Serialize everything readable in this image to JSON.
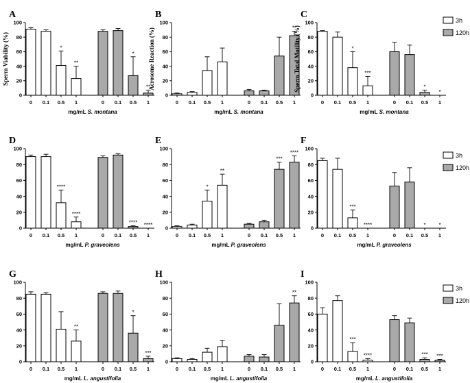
{
  "legend": {
    "items": [
      {
        "label": "3h",
        "color": "#ffffff"
      },
      {
        "label": "120h",
        "color": "#a9a9a9"
      }
    ]
  },
  "chart_data": [
    {
      "panel": "A",
      "type": "bar",
      "ylabel": "Sperm Viability (%)",
      "ylim": [
        0,
        100
      ],
      "yticks": [
        0,
        20,
        40,
        60,
        80,
        100
      ],
      "x_prefix": "mg/mL",
      "x_species": "S. montana",
      "categories": [
        "0",
        "0.1",
        "0.5",
        "1"
      ],
      "series": [
        {
          "name": "3h",
          "values": [
            91,
            88,
            41,
            23
          ],
          "errors": [
            2,
            2,
            20,
            17
          ],
          "sig": [
            "",
            "",
            "*",
            "**"
          ]
        },
        {
          "name": "120h",
          "values": [
            88,
            89,
            27,
            3
          ],
          "errors": [
            2,
            3,
            26,
            4
          ],
          "sig": [
            "",
            "",
            "*",
            "**"
          ]
        }
      ]
    },
    {
      "panel": "D",
      "type": "bar",
      "ylabel": "",
      "ylim": [
        0,
        100
      ],
      "yticks": [
        0,
        20,
        40,
        60,
        80,
        100
      ],
      "x_prefix": "mg/mL",
      "x_species": "P. graveolens",
      "categories": [
        "0",
        "0.1",
        "0.5",
        "1"
      ],
      "series": [
        {
          "name": "3h",
          "values": [
            90,
            90,
            32,
            8
          ],
          "errors": [
            2,
            3,
            16,
            6
          ],
          "sig": [
            "",
            "",
            "****",
            "****"
          ]
        },
        {
          "name": "120h",
          "values": [
            89,
            92,
            2,
            0
          ],
          "errors": [
            2,
            2,
            1,
            0
          ],
          "sig": [
            "",
            "",
            "****",
            "****"
          ]
        }
      ]
    },
    {
      "panel": "G",
      "type": "bar",
      "ylabel": "",
      "ylim": [
        0,
        100
      ],
      "yticks": [
        0,
        20,
        40,
        60,
        80,
        100
      ],
      "x_prefix": "mg/mL",
      "x_species": "L. angustifolia",
      "categories": [
        "0",
        "0.1",
        "0.5",
        "1"
      ],
      "series": [
        {
          "name": "3h",
          "values": [
            85,
            85,
            41,
            26
          ],
          "errors": [
            3,
            2,
            22,
            14
          ],
          "sig": [
            "",
            "",
            "",
            "**"
          ]
        },
        {
          "name": "120h",
          "values": [
            86,
            86,
            36,
            4
          ],
          "errors": [
            2,
            3,
            22,
            3
          ],
          "sig": [
            "",
            "",
            "*",
            "***"
          ]
        }
      ]
    },
    {
      "panel": "B",
      "type": "bar",
      "ylabel": "Acrosome Reaction (%)",
      "ylim": [
        0,
        100
      ],
      "yticks": [
        0,
        20,
        40,
        60,
        80,
        100
      ],
      "x_prefix": "mg/mL",
      "x_species": "S. montana",
      "categories": [
        "0",
        "0.1",
        "0.5",
        "1"
      ],
      "series": [
        {
          "name": "3h",
          "values": [
            2,
            4,
            34,
            46
          ],
          "errors": [
            1,
            1,
            19,
            19
          ],
          "sig": [
            "",
            "",
            "",
            ""
          ]
        },
        {
          "name": "120h",
          "values": [
            6,
            6,
            54,
            82
          ],
          "errors": [
            2,
            1,
            26,
            6
          ],
          "sig": [
            "",
            "",
            "",
            "**"
          ]
        }
      ]
    },
    {
      "panel": "E",
      "type": "bar",
      "ylabel": "",
      "ylim": [
        0,
        100
      ],
      "yticks": [
        0,
        20,
        40,
        60,
        80,
        100
      ],
      "x_prefix": "mg/mL",
      "x_species": "P. graveolens",
      "categories": [
        "0",
        "0.1",
        "0.5",
        "1"
      ],
      "series": [
        {
          "name": "3h",
          "values": [
            2,
            4,
            34,
            54
          ],
          "errors": [
            1,
            1,
            14,
            14
          ],
          "sig": [
            "",
            "",
            "*",
            "**"
          ]
        },
        {
          "name": "120h",
          "values": [
            5,
            8,
            74,
            83
          ],
          "errors": [
            1,
            2,
            9,
            8
          ],
          "sig": [
            "",
            "",
            "***",
            "****"
          ]
        }
      ]
    },
    {
      "panel": "H",
      "type": "bar",
      "ylabel": "",
      "ylim": [
        0,
        100
      ],
      "yticks": [
        0,
        20,
        40,
        60,
        80,
        100
      ],
      "x_prefix": "mg/mL",
      "x_species": "L. angustifolia",
      "categories": [
        "0",
        "0.1",
        "0.5",
        "1"
      ],
      "series": [
        {
          "name": "3h",
          "values": [
            4,
            3,
            12,
            19
          ],
          "errors": [
            1,
            1,
            5,
            8
          ],
          "sig": [
            "",
            "",
            "",
            ""
          ]
        },
        {
          "name": "120h",
          "values": [
            7,
            6,
            46,
            74
          ],
          "errors": [
            2,
            3,
            27,
            9
          ],
          "sig": [
            "",
            "",
            "",
            "**"
          ]
        }
      ]
    },
    {
      "panel": "C",
      "type": "bar",
      "ylabel": "Sperm Total Motility (%)",
      "ylim": [
        0,
        100
      ],
      "yticks": [
        0,
        20,
        40,
        60,
        80,
        100
      ],
      "x_prefix": "mg/mL",
      "x_species": "S. montana",
      "categories": [
        "0",
        "0.1",
        "0.5",
        "1"
      ],
      "series": [
        {
          "name": "3h",
          "values": [
            88,
            80,
            38,
            13
          ],
          "errors": [
            1,
            7,
            22,
            13
          ],
          "sig": [
            "",
            "",
            "*",
            "***"
          ]
        },
        {
          "name": "120h",
          "values": [
            60,
            56,
            4,
            0
          ],
          "errors": [
            13,
            13,
            3,
            0
          ],
          "sig": [
            "",
            "",
            "*",
            "*"
          ]
        }
      ]
    },
    {
      "panel": "F",
      "type": "bar",
      "ylabel": "",
      "ylim": [
        0,
        100
      ],
      "yticks": [
        0,
        20,
        40,
        60,
        80,
        100
      ],
      "x_prefix": "mg/mL",
      "x_species": "P. graveolens",
      "categories": [
        "0",
        "0.1",
        "0.5",
        "1"
      ],
      "series": [
        {
          "name": "3h",
          "values": [
            85,
            74,
            13,
            0
          ],
          "errors": [
            3,
            14,
            10,
            0
          ],
          "sig": [
            "",
            "",
            "***",
            "****"
          ]
        },
        {
          "name": "120h",
          "values": [
            53,
            58,
            0,
            0
          ],
          "errors": [
            17,
            18,
            0,
            0
          ],
          "sig": [
            "",
            "",
            "*",
            "*"
          ]
        }
      ]
    },
    {
      "panel": "I",
      "type": "bar",
      "ylabel": "",
      "ylim": [
        0,
        100
      ],
      "yticks": [
        0,
        20,
        40,
        60,
        80,
        100
      ],
      "x_prefix": "mg/mL",
      "x_species": "L. angustifolia",
      "categories": [
        "0",
        "0.1",
        "0.5",
        "1"
      ],
      "series": [
        {
          "name": "3h",
          "values": [
            60,
            77,
            13,
            2
          ],
          "errors": [
            8,
            6,
            11,
            2
          ],
          "sig": [
            "",
            "",
            "***",
            "****"
          ]
        },
        {
          "name": "120h",
          "values": [
            53,
            49,
            3,
            2
          ],
          "errors": [
            5,
            6,
            2,
            1
          ],
          "sig": [
            "",
            "",
            "***",
            "***"
          ]
        }
      ]
    }
  ]
}
